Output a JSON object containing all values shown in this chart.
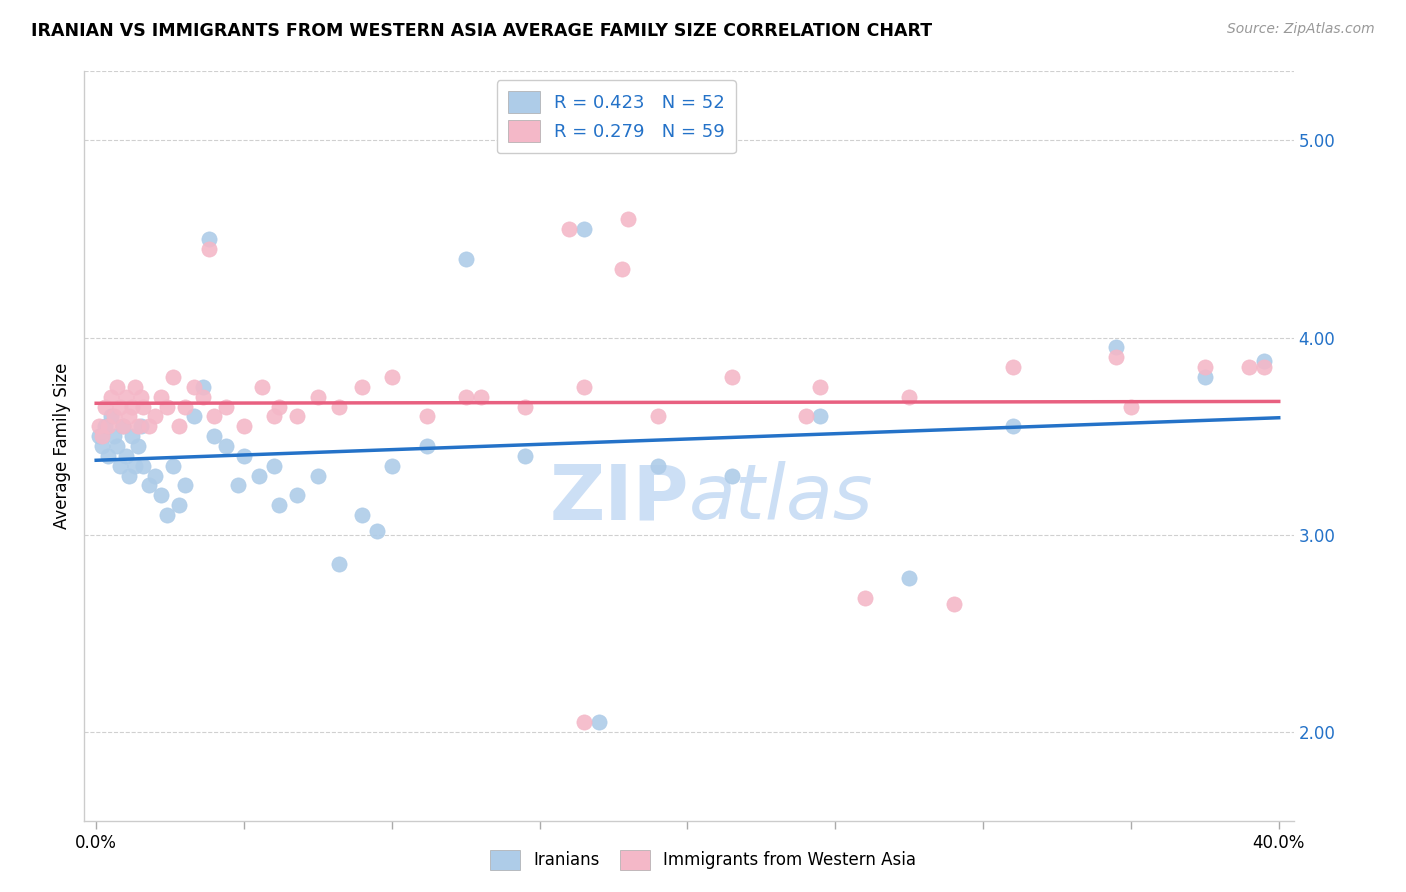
{
  "title": "IRANIAN VS IMMIGRANTS FROM WESTERN ASIA AVERAGE FAMILY SIZE CORRELATION CHART",
  "source": "Source: ZipAtlas.com",
  "ylabel": "Average Family Size",
  "yticks": [
    2.0,
    3.0,
    4.0,
    5.0
  ],
  "xticks": [
    0.0,
    0.05,
    0.1,
    0.15,
    0.2,
    0.25,
    0.3,
    0.35,
    0.4
  ],
  "xlim": [
    -0.004,
    0.405
  ],
  "ylim": [
    1.55,
    5.35
  ],
  "legend_blue_label": "R = 0.423   N = 52",
  "legend_pink_label": "R = 0.279   N = 59",
  "legend_blue_color": "#aecce8",
  "legend_pink_color": "#f4b8c8",
  "blue_scatter_color": "#aecce8",
  "pink_scatter_color": "#f4b8c8",
  "blue_line_color": "#2472c8",
  "pink_line_color": "#e86080",
  "watermark_color": "#ccdff5",
  "blue_text_color": "#2472c8",
  "iranians_x": [
    0.001,
    0.002,
    0.003,
    0.004,
    0.005,
    0.006,
    0.007,
    0.008,
    0.009,
    0.01,
    0.011,
    0.012,
    0.013,
    0.014,
    0.015,
    0.016,
    0.018,
    0.02,
    0.022,
    0.024,
    0.026,
    0.028,
    0.03,
    0.033,
    0.036,
    0.04,
    0.044,
    0.05,
    0.055,
    0.062,
    0.068,
    0.075,
    0.082,
    0.09,
    0.1,
    0.112,
    0.125,
    0.145,
    0.165,
    0.19,
    0.215,
    0.245,
    0.275,
    0.31,
    0.345,
    0.375,
    0.095,
    0.06,
    0.038,
    0.048,
    0.17,
    0.395
  ],
  "iranians_y": [
    3.5,
    3.45,
    3.55,
    3.4,
    3.6,
    3.5,
    3.45,
    3.35,
    3.55,
    3.4,
    3.3,
    3.5,
    3.35,
    3.45,
    3.55,
    3.35,
    3.25,
    3.3,
    3.2,
    3.1,
    3.35,
    3.15,
    3.25,
    3.6,
    3.75,
    3.5,
    3.45,
    3.4,
    3.3,
    3.15,
    3.2,
    3.3,
    2.85,
    3.1,
    3.35,
    3.45,
    4.4,
    3.4,
    4.55,
    3.35,
    3.3,
    3.6,
    2.78,
    3.55,
    3.95,
    3.8,
    3.02,
    3.35,
    4.5,
    3.25,
    2.05,
    3.88
  ],
  "western_asia_x": [
    0.001,
    0.002,
    0.003,
    0.004,
    0.005,
    0.006,
    0.007,
    0.008,
    0.009,
    0.01,
    0.011,
    0.012,
    0.013,
    0.014,
    0.015,
    0.016,
    0.018,
    0.02,
    0.022,
    0.024,
    0.026,
    0.028,
    0.03,
    0.033,
    0.036,
    0.04,
    0.044,
    0.05,
    0.056,
    0.062,
    0.068,
    0.075,
    0.082,
    0.09,
    0.1,
    0.112,
    0.125,
    0.145,
    0.165,
    0.19,
    0.215,
    0.245,
    0.275,
    0.31,
    0.345,
    0.375,
    0.06,
    0.038,
    0.13,
    0.178,
    0.165,
    0.29,
    0.35,
    0.39,
    0.18,
    0.395,
    0.24,
    0.16,
    0.26
  ],
  "western_asia_y": [
    3.55,
    3.5,
    3.65,
    3.55,
    3.7,
    3.6,
    3.75,
    3.65,
    3.55,
    3.7,
    3.6,
    3.65,
    3.75,
    3.55,
    3.7,
    3.65,
    3.55,
    3.6,
    3.7,
    3.65,
    3.8,
    3.55,
    3.65,
    3.75,
    3.7,
    3.6,
    3.65,
    3.55,
    3.75,
    3.65,
    3.6,
    3.7,
    3.65,
    3.75,
    3.8,
    3.6,
    3.7,
    3.65,
    3.75,
    3.6,
    3.8,
    3.75,
    3.7,
    3.85,
    3.9,
    3.85,
    3.6,
    4.45,
    3.7,
    4.35,
    2.05,
    2.65,
    3.65,
    3.85,
    4.6,
    3.85,
    3.6,
    4.55,
    2.68
  ]
}
